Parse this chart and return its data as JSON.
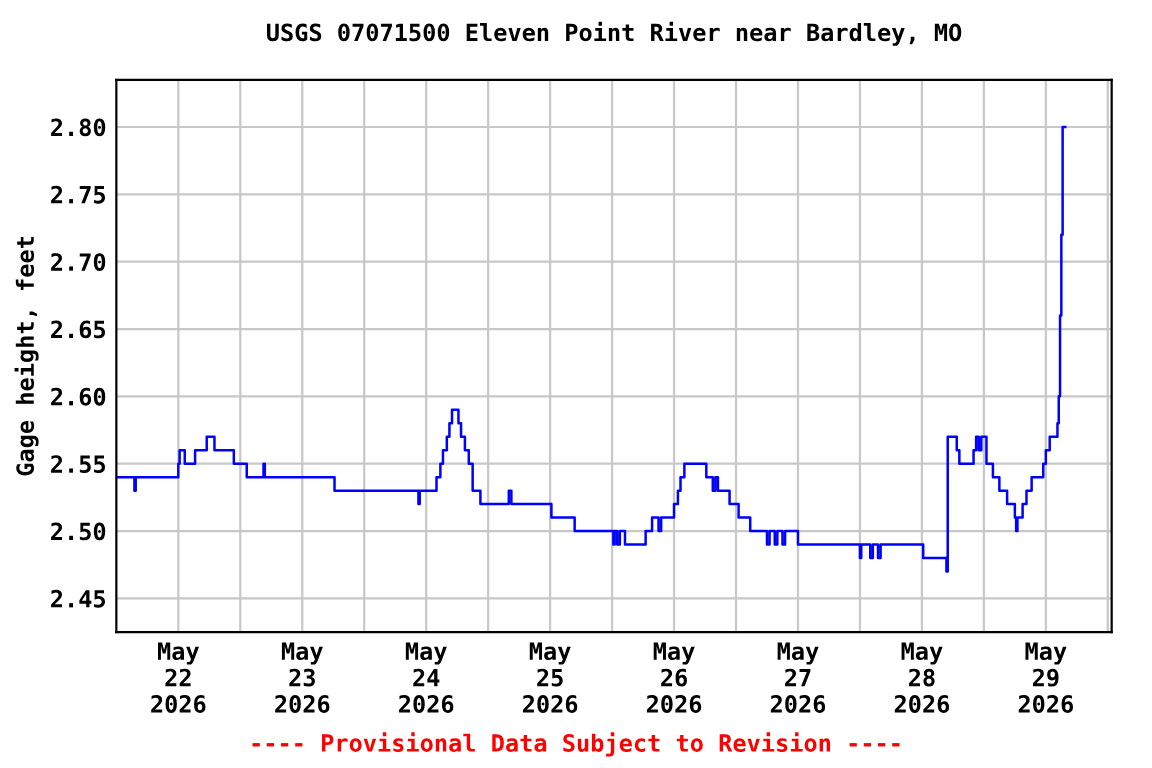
{
  "chart_data": {
    "type": "step",
    "title": "USGS 07071500 Eleven Point River near Bardley, MO",
    "ylabel": "Gage height, feet",
    "annotations": [
      "---- Provisional Data Subject to Revision ----"
    ],
    "x": [
      "2026-05-21T12:00",
      "2026-05-21T15:30",
      "2026-05-21T15:45",
      "2026-05-22T00:00",
      "2026-05-22T00:15",
      "2026-05-22T01:15",
      "2026-05-22T03:15",
      "2026-05-22T05:30",
      "2026-05-22T07:00",
      "2026-05-22T10:45",
      "2026-05-22T13:15",
      "2026-05-22T16:30",
      "2026-05-22T16:45",
      "2026-05-23T06:15",
      "2026-05-23T22:30",
      "2026-05-23T22:45",
      "2026-05-24T02:00",
      "2026-05-24T02:45",
      "2026-05-24T03:15",
      "2026-05-24T04:00",
      "2026-05-24T04:30",
      "2026-05-24T05:00",
      "2026-05-24T06:15",
      "2026-05-24T06:45",
      "2026-05-24T07:30",
      "2026-05-24T08:15",
      "2026-05-24T09:00",
      "2026-05-24T10:30",
      "2026-05-24T16:00",
      "2026-05-24T16:30",
      "2026-05-25T00:15",
      "2026-05-25T04:45",
      "2026-05-25T12:15",
      "2026-05-25T12:30",
      "2026-05-25T13:00",
      "2026-05-25T13:30",
      "2026-05-25T14:30",
      "2026-05-25T18:30",
      "2026-05-25T19:45",
      "2026-05-25T21:00",
      "2026-05-25T21:30",
      "2026-05-26T00:00",
      "2026-05-26T00:45",
      "2026-05-26T01:15",
      "2026-05-26T02:00",
      "2026-05-26T06:15",
      "2026-05-26T07:30",
      "2026-05-26T08:00",
      "2026-05-26T08:30",
      "2026-05-26T10:45",
      "2026-05-26T12:30",
      "2026-05-26T14:45",
      "2026-05-26T18:00",
      "2026-05-26T18:30",
      "2026-05-26T19:30",
      "2026-05-26T20:00",
      "2026-05-26T21:00",
      "2026-05-26T21:30",
      "2026-05-27T00:00",
      "2026-05-27T12:00",
      "2026-05-27T12:15",
      "2026-05-27T14:00",
      "2026-05-27T14:30",
      "2026-05-27T15:30",
      "2026-05-27T16:00",
      "2026-05-28T00:15",
      "2026-05-28T04:45",
      "2026-05-28T05:00",
      "2026-05-28T06:45",
      "2026-05-28T07:15",
      "2026-05-28T10:00",
      "2026-05-28T10:30",
      "2026-05-28T11:00",
      "2026-05-28T11:30",
      "2026-05-28T12:30",
      "2026-05-28T13:45",
      "2026-05-28T15:00",
      "2026-05-28T16:30",
      "2026-05-28T18:00",
      "2026-05-28T18:15",
      "2026-05-28T18:30",
      "2026-05-28T19:30",
      "2026-05-28T20:15",
      "2026-05-28T21:15",
      "2026-05-28T23:30",
      "2026-05-29T00:00",
      "2026-05-29T00:45",
      "2026-05-29T02:15",
      "2026-05-29T02:30",
      "2026-05-29T02:45",
      "2026-05-29T03:00",
      "2026-05-29T03:15",
      "2026-05-29T03:45"
    ],
    "series": [
      {
        "color": "#0000ff",
        "values": [
          2.54,
          2.53,
          2.54,
          2.55,
          2.56,
          2.55,
          2.56,
          2.57,
          2.56,
          2.55,
          2.54,
          2.55,
          2.54,
          2.53,
          2.52,
          2.53,
          2.54,
          2.55,
          2.56,
          2.57,
          2.58,
          2.59,
          2.58,
          2.57,
          2.56,
          2.55,
          2.53,
          2.52,
          2.53,
          2.52,
          2.51,
          2.5,
          2.49,
          2.5,
          2.49,
          2.5,
          2.49,
          2.5,
          2.51,
          2.5,
          2.51,
          2.52,
          2.53,
          2.54,
          2.55,
          2.54,
          2.53,
          2.54,
          2.53,
          2.52,
          2.51,
          2.5,
          2.49,
          2.5,
          2.49,
          2.5,
          2.49,
          2.5,
          2.49,
          2.48,
          2.49,
          2.48,
          2.49,
          2.48,
          2.49,
          2.48,
          2.47,
          2.57,
          2.56,
          2.55,
          2.56,
          2.57,
          2.56,
          2.57,
          2.55,
          2.54,
          2.53,
          2.52,
          2.51,
          2.5,
          2.51,
          2.52,
          2.53,
          2.54,
          2.55,
          2.56,
          2.57,
          2.58,
          2.6,
          2.66,
          2.72,
          2.8,
          2.8
        ]
      }
    ],
    "xlim": [
      "2026-05-21T12:00",
      "2026-05-29T12:45"
    ],
    "xticks": [
      {
        "value": "2026-05-22T00:00",
        "label": "May\n22\n2026"
      },
      {
        "value": "2026-05-22T12:00",
        "label": null
      },
      {
        "value": "2026-05-23T00:00",
        "label": "May\n23\n2026"
      },
      {
        "value": "2026-05-23T12:00",
        "label": null
      },
      {
        "value": "2026-05-24T00:00",
        "label": "May\n24\n2026"
      },
      {
        "value": "2026-05-24T12:00",
        "label": null
      },
      {
        "value": "2026-05-25T00:00",
        "label": "May\n25\n2026"
      },
      {
        "value": "2026-05-25T12:00",
        "label": null
      },
      {
        "value": "2026-05-26T00:00",
        "label": "May\n26\n2026"
      },
      {
        "value": "2026-05-26T12:00",
        "label": null
      },
      {
        "value": "2026-05-27T00:00",
        "label": "May\n27\n2026"
      },
      {
        "value": "2026-05-27T12:00",
        "label": null
      },
      {
        "value": "2026-05-28T00:00",
        "label": "May\n28\n2026"
      },
      {
        "value": "2026-05-28T12:00",
        "label": null
      },
      {
        "value": "2026-05-29T00:00",
        "label": "May\n29\n2026"
      },
      {
        "value": "2026-05-29T12:00",
        "label": null
      }
    ],
    "ylim": [
      2.425,
      2.835
    ],
    "yticks": [
      {
        "value": 2.45,
        "label": "2.45"
      },
      {
        "value": 2.5,
        "label": "2.50"
      },
      {
        "value": 2.55,
        "label": "2.55"
      },
      {
        "value": 2.6,
        "label": "2.60"
      },
      {
        "value": 2.65,
        "label": "2.65"
      },
      {
        "value": 2.7,
        "label": "2.70"
      },
      {
        "value": 2.75,
        "label": "2.75"
      },
      {
        "value": 2.8,
        "label": "2.80"
      }
    ],
    "grid": true,
    "legend": false,
    "line_style": "solid",
    "marker": "none"
  }
}
